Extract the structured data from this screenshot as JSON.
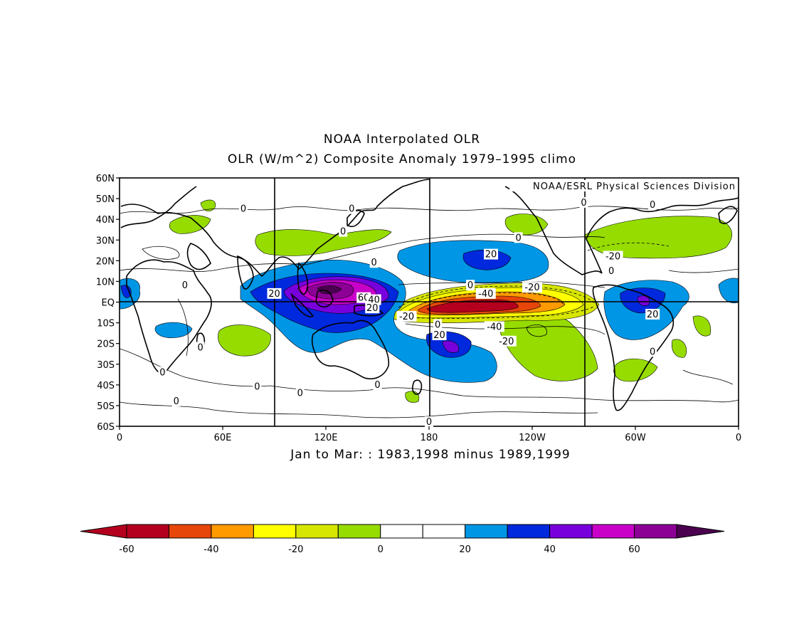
{
  "title": "NOAA Interpolated OLR",
  "subtitle": "OLR (W/m^2) Composite Anomaly 1979–1995 climo",
  "credit": "NOAA/ESRL Physical Sciences Division",
  "period": "Jan to Mar: : 1983,1998 minus 1989,1999",
  "map": {
    "lat_labels": [
      "60N",
      "50N",
      "40N",
      "30N",
      "20N",
      "10N",
      "EQ",
      "10S",
      "20S",
      "30S",
      "40S",
      "50S",
      "60S"
    ],
    "lon_labels": [
      "0",
      "60E",
      "120E",
      "180",
      "120W",
      "60W",
      "0"
    ],
    "contour_labels": [
      {
        "text": "20",
        "lon": 90,
        "lat": 4
      },
      {
        "text": "60",
        "lon": 142,
        "lat": 2
      },
      {
        "text": "40",
        "lon": 148,
        "lat": 1
      },
      {
        "text": "20",
        "lon": 147,
        "lat": -3
      },
      {
        "text": "-40",
        "lon": 213,
        "lat": 4
      },
      {
        "text": "-20",
        "lon": 240,
        "lat": 7
      },
      {
        "text": "-20",
        "lon": 167,
        "lat": -7
      },
      {
        "text": "-40",
        "lon": 218,
        "lat": -12
      },
      {
        "text": "-20",
        "lon": 225,
        "lat": -19
      },
      {
        "text": "20",
        "lon": 186,
        "lat": -16
      },
      {
        "text": "20",
        "lon": 216,
        "lat": 23
      },
      {
        "text": "-20",
        "lon": 287,
        "lat": 22
      },
      {
        "text": "20",
        "lon": 310,
        "lat": -6
      },
      {
        "text": "0",
        "lon": 72,
        "lat": 45
      },
      {
        "text": "0",
        "lon": 130,
        "lat": 34
      },
      {
        "text": "0",
        "lon": 135,
        "lat": 45
      },
      {
        "text": "0",
        "lon": 232,
        "lat": 31
      },
      {
        "text": "0",
        "lon": 270,
        "lat": 48
      },
      {
        "text": "0",
        "lon": 310,
        "lat": 47
      },
      {
        "text": "0",
        "lon": 286,
        "lat": 15
      },
      {
        "text": "0",
        "lon": 204,
        "lat": 8
      },
      {
        "text": "0",
        "lon": 185,
        "lat": -11
      },
      {
        "text": "0",
        "lon": 310,
        "lat": -24
      },
      {
        "text": "0",
        "lon": 38,
        "lat": 8
      },
      {
        "text": "0",
        "lon": 47,
        "lat": -22
      },
      {
        "text": "0",
        "lon": 25,
        "lat": -34
      },
      {
        "text": "0",
        "lon": 33,
        "lat": -48
      },
      {
        "text": "0",
        "lon": 80,
        "lat": -41
      },
      {
        "text": "0",
        "lon": 105,
        "lat": -44
      },
      {
        "text": "0",
        "lon": 150,
        "lat": -40
      },
      {
        "text": "0",
        "lon": 180,
        "lat": -58
      },
      {
        "text": "0",
        "lon": 148,
        "lat": 19
      }
    ]
  },
  "colorbar": {
    "labels": [
      "-60",
      "-40",
      "-20",
      "0",
      "20",
      "40",
      "60"
    ],
    "bins": [
      -60,
      -50,
      -40,
      -30,
      -20,
      -10,
      0,
      10,
      20,
      30,
      40,
      50,
      60
    ],
    "colors": [
      "#b4001e",
      "#e6460a",
      "#ff9a00",
      "#ffff00",
      "#d7e600",
      "#96dc00",
      "#ffffff",
      "#ffffff",
      "#0096e6",
      "#0028dc",
      "#7800dc",
      "#c800c8",
      "#8c0096"
    ],
    "under_color": "#b4001e",
    "over_color": "#4b0050"
  }
}
